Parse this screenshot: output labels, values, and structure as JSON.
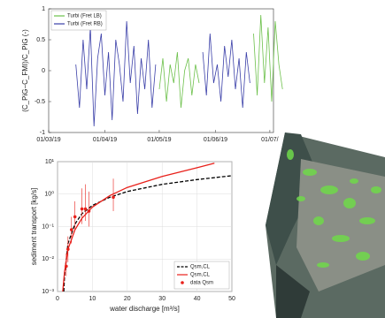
{
  "chart_data": [
    {
      "type": "line",
      "ylabel": "(C_PiG−C_FMI)/C_PiG (-)",
      "x": [
        "16/03/19",
        "18/03/19",
        "20/03/19",
        "22/03/19",
        "24/03/19",
        "26/03/19",
        "28/03/19",
        "30/03/19",
        "01/04/19",
        "03/04/19",
        "05/04/19",
        "07/04/19",
        "09/04/19",
        "11/04/19",
        "13/04/19",
        "15/04/19",
        "17/04/19",
        "19/04/19",
        "21/04/19",
        "23/04/19",
        "25/04/19",
        "27/04/19",
        "29/04/19",
        "01/05/19",
        "03/05/19",
        "05/05/19",
        "07/05/19",
        "09/05/19",
        "11/05/19",
        "13/05/19",
        "15/05/19",
        "17/05/19",
        "19/05/19",
        "21/05/19",
        "23/05/19",
        "25/05/19",
        "27/05/19",
        "29/05/19",
        "31/05/19",
        "02/06/19",
        "04/06/19",
        "06/06/19",
        "08/06/19",
        "10/06/19",
        "12/06/19",
        "14/06/19",
        "16/06/19",
        "18/06/19",
        "20/06/19",
        "22/06/19",
        "24/06/19",
        "26/06/19",
        "28/06/19",
        "30/06/19",
        "02/07/19",
        "04/07/19",
        "06/07/19",
        "08/07/19"
      ],
      "series": [
        {
          "name": "Turbi (Fret LB)",
          "color": "#6cc04a",
          "values": [
            null,
            null,
            null,
            null,
            null,
            null,
            null,
            null,
            null,
            null,
            null,
            null,
            null,
            null,
            null,
            null,
            null,
            null,
            null,
            null,
            null,
            null,
            null,
            -0.3,
            0.2,
            -0.5,
            0.1,
            -0.2,
            0.3,
            -0.6,
            0.0,
            0.2,
            -0.4,
            0.1,
            -0.2,
            null,
            null,
            null,
            null,
            null,
            null,
            null,
            null,
            null,
            null,
            null,
            null,
            null,
            null,
            0.6,
            -0.4,
            0.9,
            -0.2,
            0.7,
            -0.5,
            0.8,
            0.1,
            -0.3
          ]
        },
        {
          "name": "Turbi (Fret RB)",
          "color": "#3a3fa8",
          "values": [
            0.1,
            -0.6,
            0.5,
            -0.3,
            0.7,
            -0.9,
            0.2,
            0.6,
            -0.4,
            0.3,
            -0.8,
            0.5,
            0.1,
            -0.5,
            0.8,
            -0.2,
            0.4,
            -0.7,
            0.2,
            -0.3,
            0.5,
            -0.6,
            0.1,
            null,
            null,
            null,
            null,
            null,
            null,
            null,
            null,
            null,
            null,
            null,
            null,
            0.3,
            -0.4,
            0.6,
            -0.2,
            0.1,
            -0.5,
            0.4,
            -0.1,
            0.5,
            -0.3,
            0.2,
            -0.6,
            0.3,
            -0.2,
            null,
            null,
            null,
            null,
            null,
            null,
            null,
            null,
            null
          ]
        }
      ],
      "xlim": [
        "01/03/19",
        "03/07/19"
      ],
      "xticks": [
        "01/03/19",
        "01/04/19",
        "01/05/19",
        "01/06/19",
        {
          "value": "01/07/19",
          "label": "01/07/"
        }
      ],
      "ylim": [
        -1,
        1
      ],
      "yticks": [
        -1,
        -0.5,
        0,
        0.5,
        1
      ],
      "legend": "upper left"
    },
    {
      "type": "line",
      "log_y": true,
      "grid": true,
      "xlabel": "water discharge [m³/s]",
      "ylabel": "sediment transport [kg/s]",
      "series": [
        {
          "name": "Qsm,CL",
          "color": "#000000",
          "dashed": true,
          "x": [
            1.8,
            2,
            3,
            5,
            7,
            10,
            15,
            20,
            30,
            40,
            50
          ],
          "values": [
            0.001,
            0.003,
            0.03,
            0.12,
            0.25,
            0.45,
            0.8,
            1.2,
            2,
            2.8,
            3.7
          ]
        },
        {
          "name": "Qsm,CL",
          "color": "#e8201a",
          "x": [
            1.5,
            2,
            3,
            5,
            7,
            10,
            15,
            20,
            30,
            40,
            45
          ],
          "values": [
            0.001,
            0.004,
            0.02,
            0.08,
            0.18,
            0.4,
            0.9,
            1.6,
            3.5,
            6.5,
            9
          ]
        },
        {
          "name": "data Qsm",
          "color": "#e8201a",
          "type": "scatter",
          "x": [
            2.5,
            3,
            4,
            5,
            7,
            8,
            9,
            16
          ],
          "values": [
            0.006,
            0.02,
            0.08,
            0.2,
            0.35,
            0.35,
            0.3,
            0.8
          ],
          "lo": [
            0.003,
            0.008,
            0.03,
            0.08,
            0.12,
            0.15,
            0.1,
            0.3
          ],
          "hi": [
            0.015,
            0.05,
            0.2,
            0.6,
            1.5,
            2,
            1.2,
            3
          ]
        }
      ],
      "xlim": [
        0,
        50
      ],
      "xticks": [
        0,
        10,
        20,
        30,
        40,
        50
      ],
      "ylim": [
        0.001,
        10
      ],
      "yticks": [
        {
          "value": 0.001,
          "label": "10⁻³"
        },
        {
          "value": 0.01,
          "label": "10⁻²"
        },
        {
          "value": 0.1,
          "label": "10⁻¹"
        },
        {
          "value": 1,
          "label": "10⁰"
        },
        {
          "value": 10,
          "label": "10¹"
        }
      ],
      "legend": "lower right"
    }
  ]
}
